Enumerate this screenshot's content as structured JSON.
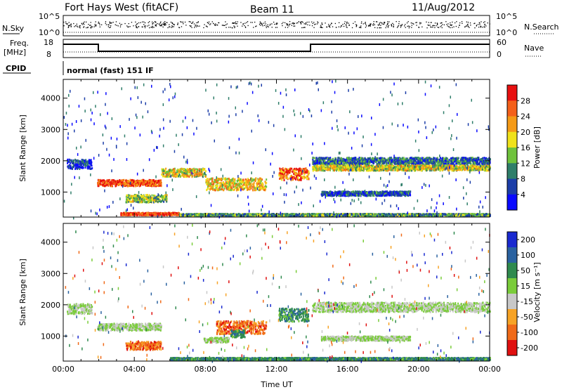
{
  "header": {
    "title": "Fort Hays West (fitACF)",
    "beam": "Beam 11",
    "date": "11/Aug/2012"
  },
  "top_panels": {
    "nsky_label": "N.Sky",
    "nsearch_label": "N.Search",
    "noise_left_ticks": [
      "10^5",
      "10^0"
    ],
    "noise_right_ticks": [
      "10^5",
      "10^0"
    ],
    "freq_label_line1": "Freq.",
    "freq_label_line2": "[MHz]",
    "freq_ticks": [
      "18",
      "8"
    ],
    "nave_label": "Nave",
    "nave_ticks": [
      "60",
      "0"
    ],
    "cpid_label": "CPID",
    "cpid_text": "normal (fast) 151 IF"
  },
  "chart_data": [
    {
      "type": "heatmap",
      "name": "power",
      "ylabel": "Slant Range [km]",
      "xlabel": "",
      "yticks": [
        "1000",
        "2000",
        "3000",
        "4000"
      ],
      "yticks_values": [
        1000,
        2000,
        3000,
        4000
      ],
      "ylim": [
        200,
        4600
      ],
      "xlim_hours": [
        0,
        24
      ],
      "colorbar": {
        "label": "Power [dB]",
        "ticks": [
          "4",
          "8",
          "12",
          "16",
          "20",
          "24",
          "28"
        ],
        "colors": [
          "#0a0aff",
          "#1c3ea8",
          "#2f7e6a",
          "#6fc23c",
          "#f0e21a",
          "#f59a16",
          "#f4601a",
          "#e81010"
        ]
      },
      "bands": [
        {
          "t0": 0.2,
          "t1": 1.6,
          "r": 1920,
          "w": 300,
          "level": 0.15
        },
        {
          "t0": 1.9,
          "t1": 5.5,
          "r": 1320,
          "w": 200,
          "level": 0.85
        },
        {
          "t0": 5.5,
          "t1": 8.0,
          "r": 1650,
          "w": 260,
          "level": 0.55
        },
        {
          "t0": 8.0,
          "t1": 11.4,
          "r": 1280,
          "w": 380,
          "level": 0.6
        },
        {
          "t0": 3.5,
          "t1": 5.8,
          "r": 820,
          "w": 240,
          "level": 0.45
        },
        {
          "t0": 12.1,
          "t1": 13.8,
          "r": 1600,
          "w": 380,
          "level": 0.8
        },
        {
          "t0": 14.0,
          "t1": 24.0,
          "r": 2020,
          "w": 220,
          "level": 0.25
        },
        {
          "t0": 14.0,
          "t1": 24.0,
          "r": 1800,
          "w": 170,
          "level": 0.55
        },
        {
          "t0": 14.5,
          "t1": 19.5,
          "r": 980,
          "w": 140,
          "level": 0.2
        },
        {
          "t0": 3.2,
          "t1": 6.5,
          "r": 330,
          "w": 80,
          "level": 0.9
        },
        {
          "t0": 6.5,
          "t1": 24.0,
          "r": 300,
          "w": 70,
          "level": 0.35
        }
      ]
    },
    {
      "type": "heatmap",
      "name": "velocity",
      "ylabel": "Slant Range [km]",
      "xlabel": "Time UT",
      "yticks": [
        "1000",
        "2000",
        "3000",
        "4000"
      ],
      "yticks_values": [
        1000,
        2000,
        3000,
        4000
      ],
      "ylim": [
        200,
        4600
      ],
      "xlim_hours": [
        0,
        24
      ],
      "xticks": [
        "00:00",
        "04:00",
        "08:00",
        "12:00",
        "16:00",
        "20:00",
        "00:00"
      ],
      "xticks_hours": [
        0,
        4,
        8,
        12,
        16,
        20,
        24
      ],
      "colorbar": {
        "label": "Velocity [m s⁻¹]",
        "ticks": [
          "200",
          "100",
          "50",
          "15",
          "-15",
          "-50",
          "-100",
          "-200"
        ],
        "colors": [
          "#1a2ad0",
          "#2a62a0",
          "#2f8a4e",
          "#7acc3a",
          "#c8c8c8",
          "#f7a325",
          "#f06a18",
          "#e01010"
        ]
      },
      "bands": [
        {
          "t0": 0.2,
          "t1": 1.6,
          "r": 1900,
          "w": 320,
          "level": 0.5
        },
        {
          "t0": 1.9,
          "t1": 5.5,
          "r": 1320,
          "w": 220,
          "level": 0.5
        },
        {
          "t0": 3.5,
          "t1": 5.5,
          "r": 720,
          "w": 260,
          "level": 0.8
        },
        {
          "t0": 8.6,
          "t1": 11.4,
          "r": 1300,
          "w": 420,
          "level": 0.8
        },
        {
          "t0": 7.9,
          "t1": 9.3,
          "r": 900,
          "w": 160,
          "level": 0.5
        },
        {
          "t0": 9.4,
          "t1": 10.2,
          "r": 1100,
          "w": 240,
          "level": 0.3
        },
        {
          "t0": 12.1,
          "t1": 13.8,
          "r": 1700,
          "w": 420,
          "level": 0.3
        },
        {
          "t0": 14.0,
          "t1": 24.0,
          "r": 1950,
          "w": 300,
          "level": 0.5
        },
        {
          "t0": 14.5,
          "t1": 19.5,
          "r": 950,
          "w": 140,
          "level": 0.5
        },
        {
          "t0": 6.0,
          "t1": 24.0,
          "r": 300,
          "w": 70,
          "level": 0.3
        }
      ]
    }
  ]
}
